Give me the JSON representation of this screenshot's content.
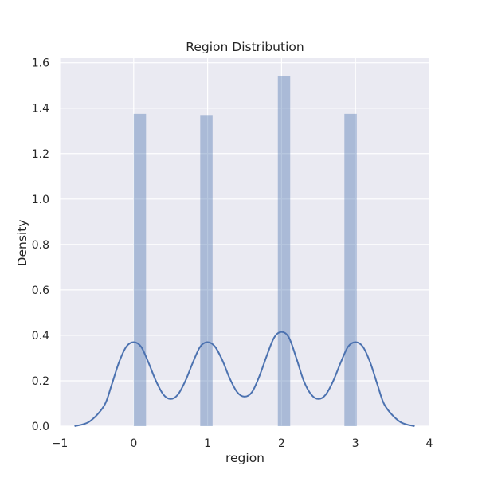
{
  "chart_data": {
    "type": "bar",
    "title": "Region Distribution",
    "xlabel": "region",
    "ylabel": "Density",
    "xlim": [
      -1,
      4
    ],
    "ylim": [
      0,
      1.62
    ],
    "xticks": [
      -1,
      0,
      1,
      2,
      3,
      4
    ],
    "xtick_labels": [
      "−1",
      "0",
      "1",
      "2",
      "3",
      "4"
    ],
    "yticks": [
      0.0,
      0.2,
      0.4,
      0.6,
      0.8,
      1.0,
      1.2,
      1.4,
      1.6
    ],
    "ytick_labels": [
      "0.0",
      "0.2",
      "0.4",
      "0.6",
      "0.8",
      "1.0",
      "1.2",
      "1.4",
      "1.6"
    ],
    "grid": true,
    "histogram": {
      "bars": [
        {
          "x0": 0.0,
          "x1": 0.167,
          "density": 1.375
        },
        {
          "x0": 0.9,
          "x1": 1.067,
          "density": 1.37
        },
        {
          "x0": 1.95,
          "x1": 2.117,
          "density": 1.54
        },
        {
          "x0": 2.85,
          "x1": 3.017,
          "density": 1.375
        }
      ],
      "color": "#4c72b0",
      "alpha": 0.4
    },
    "kde": {
      "color": "#4c72b0",
      "x": [
        -0.8,
        -0.6,
        -0.4,
        -0.3,
        -0.2,
        -0.1,
        0.0,
        0.1,
        0.2,
        0.3,
        0.4,
        0.5,
        0.6,
        0.7,
        0.8,
        0.9,
        1.0,
        1.1,
        1.2,
        1.3,
        1.4,
        1.5,
        1.6,
        1.7,
        1.8,
        1.9,
        2.0,
        2.1,
        2.2,
        2.3,
        2.4,
        2.5,
        2.6,
        2.7,
        2.8,
        2.9,
        3.0,
        3.1,
        3.2,
        3.3,
        3.4,
        3.6,
        3.8
      ],
      "y": [
        0.0,
        0.02,
        0.09,
        0.18,
        0.28,
        0.35,
        0.37,
        0.35,
        0.28,
        0.2,
        0.14,
        0.12,
        0.14,
        0.2,
        0.28,
        0.35,
        0.37,
        0.35,
        0.29,
        0.21,
        0.15,
        0.13,
        0.15,
        0.22,
        0.31,
        0.39,
        0.415,
        0.39,
        0.3,
        0.2,
        0.14,
        0.12,
        0.14,
        0.2,
        0.28,
        0.35,
        0.37,
        0.35,
        0.28,
        0.18,
        0.09,
        0.02,
        0.0
      ]
    },
    "style": {
      "background": "#eaeaf2",
      "grid_color": "#ffffff"
    }
  }
}
